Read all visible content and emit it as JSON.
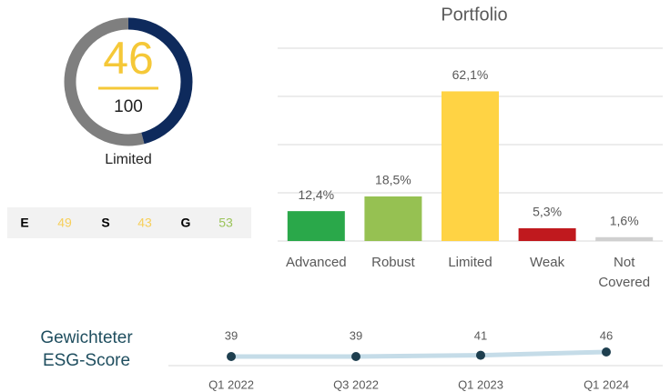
{
  "chart_data": [
    {
      "type": "donut",
      "value": 46,
      "max": 100,
      "label": "Limited",
      "color": "#0e2a5c",
      "track_color": "#7f7f7f",
      "value_color": "#f5c838",
      "pillars": [
        {
          "name": "E",
          "value": 49,
          "color": "#f7cf5a"
        },
        {
          "name": "S",
          "value": 43,
          "color": "#f7cf5a"
        },
        {
          "name": "G",
          "value": 53,
          "color": "#9bc45a"
        }
      ]
    },
    {
      "type": "bar",
      "title": "Portfolio",
      "categories": [
        "Advanced",
        "Robust",
        "Limited",
        "Weak",
        "Not Covered"
      ],
      "values": [
        12.4,
        18.5,
        62.1,
        5.3,
        1.6
      ],
      "value_labels": [
        "12,4%",
        "18,5%",
        "62,1%",
        "5,3%",
        "1,6%"
      ],
      "colors": [
        "#2aa84a",
        "#96c152",
        "#ffd344",
        "#c0191e",
        "#d0d0d0"
      ],
      "ylim": [
        0,
        80
      ],
      "yticks": [
        0,
        20,
        40,
        60,
        80
      ],
      "grid": true
    },
    {
      "type": "line",
      "title": "Gewichteter ESG-Score",
      "categories": [
        "Q1 2022",
        "Q3 2022",
        "Q1 2023",
        "Q1 2024"
      ],
      "values": [
        39,
        39,
        41,
        46
      ],
      "color": "#c5dce8",
      "marker_color": "#1e3f4f",
      "ylim": [
        25,
        60
      ]
    }
  ]
}
